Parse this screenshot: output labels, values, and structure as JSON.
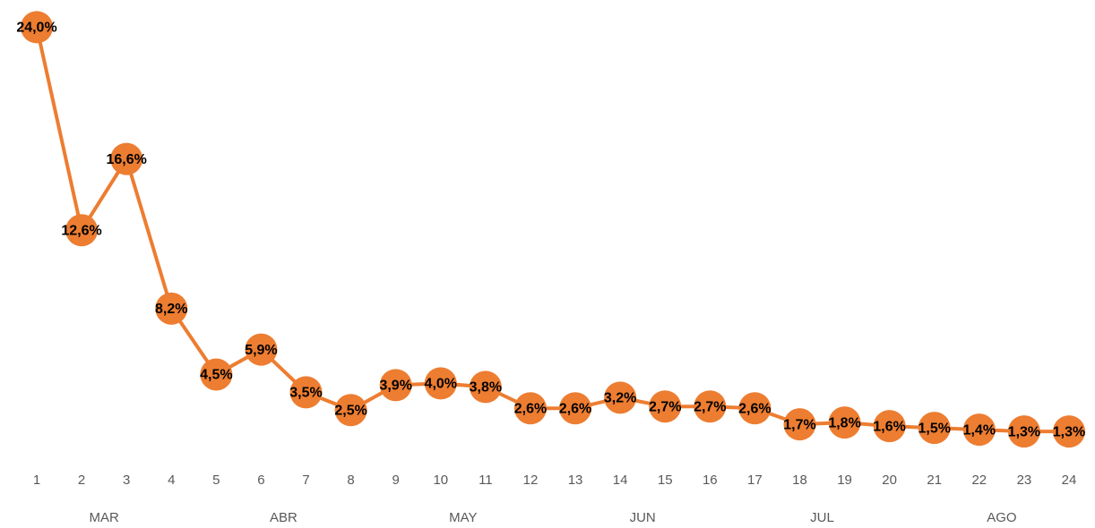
{
  "chart_data": {
    "type": "line",
    "categories": [
      "1",
      "2",
      "3",
      "4",
      "5",
      "6",
      "7",
      "8",
      "9",
      "10",
      "11",
      "12",
      "13",
      "14",
      "15",
      "16",
      "17",
      "18",
      "19",
      "20",
      "21",
      "22",
      "23",
      "24"
    ],
    "group_labels": [
      "MAR",
      "ABR",
      "MAY",
      "JUN",
      "JUL",
      "AGO"
    ],
    "series": [
      {
        "color": "#ED7D31",
        "values": [
          24.0,
          12.6,
          16.6,
          8.2,
          4.5,
          5.9,
          3.5,
          2.5,
          3.9,
          4.0,
          3.8,
          2.6,
          2.6,
          3.2,
          2.7,
          2.7,
          2.6,
          1.7,
          1.8,
          1.6,
          1.5,
          1.4,
          1.3,
          1.3
        ],
        "value_labels": [
          "24,0%",
          "12,6%",
          "16,6%",
          "8,2%",
          "4,5%",
          "5,9%",
          "3,5%",
          "2,5%",
          "3,9%",
          "4,0%",
          "3,8%",
          "2,6%",
          "2,6%",
          "3,2%",
          "2,7%",
          "2,7%",
          "2,6%",
          "1,7%",
          "1,8%",
          "1,6%",
          "1,5%",
          "1,4%",
          "1,3%",
          "1,3%"
        ]
      }
    ],
    "ylim": [
      0,
      25
    ]
  }
}
